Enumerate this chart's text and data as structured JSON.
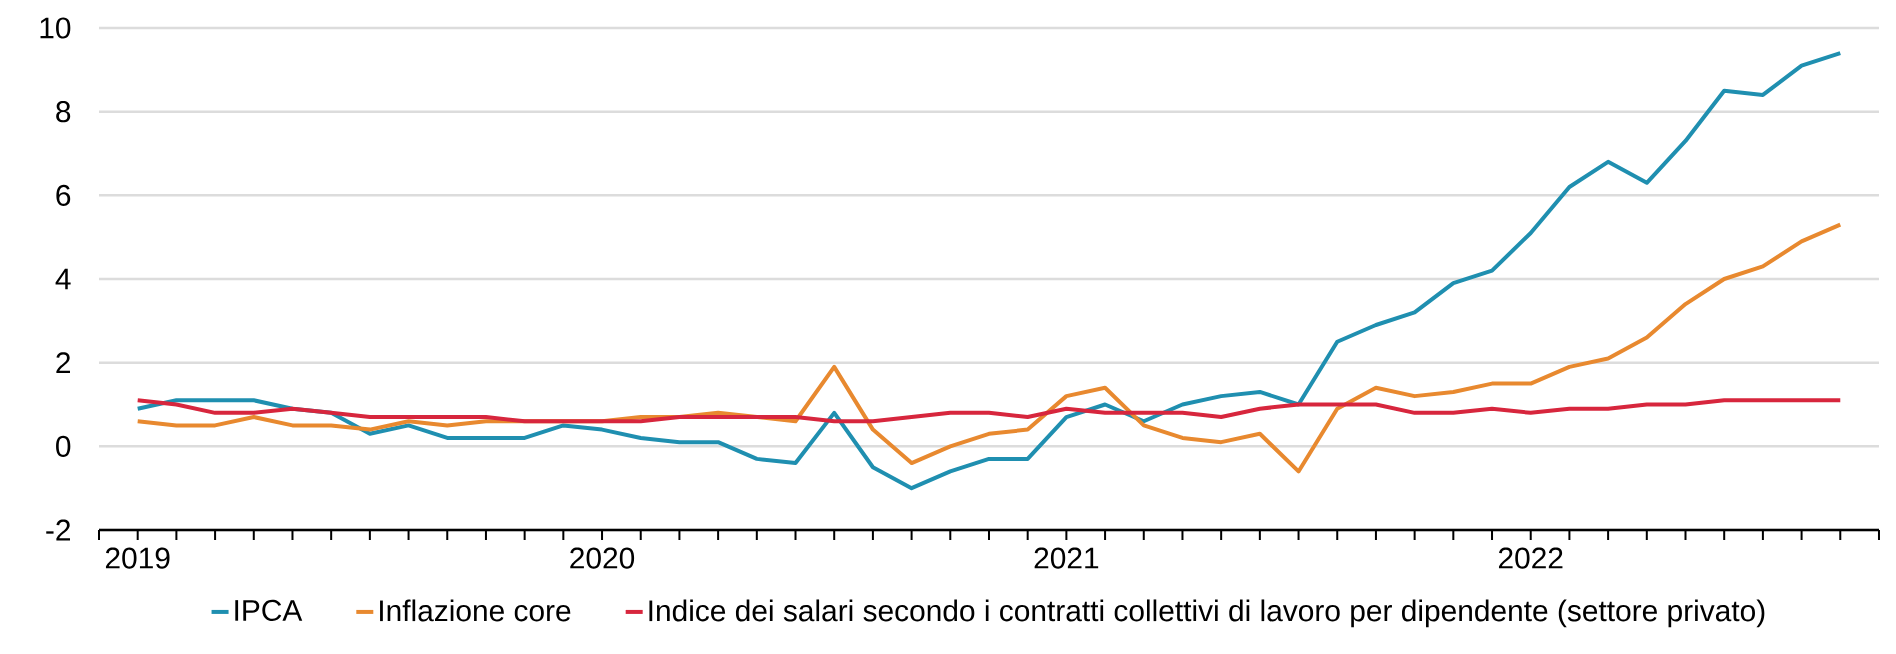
{
  "chart_data": {
    "type": "line",
    "x": [
      "2019-01",
      "2019-02",
      "2019-03",
      "2019-04",
      "2019-05",
      "2019-06",
      "2019-07",
      "2019-08",
      "2019-09",
      "2019-10",
      "2019-11",
      "2019-12",
      "2020-01",
      "2020-02",
      "2020-03",
      "2020-04",
      "2020-05",
      "2020-06",
      "2020-07",
      "2020-08",
      "2020-09",
      "2020-10",
      "2020-11",
      "2020-12",
      "2021-01",
      "2021-02",
      "2021-03",
      "2021-04",
      "2021-05",
      "2021-06",
      "2021-07",
      "2021-08",
      "2021-09",
      "2021-10",
      "2021-11",
      "2021-12",
      "2022-01",
      "2022-02",
      "2022-03",
      "2022-04",
      "2022-05",
      "2022-06",
      "2022-07",
      "2022-08",
      "2022-09"
    ],
    "series": [
      {
        "name": "IPCA",
        "color": "#1f8fb0",
        "values": [
          0.9,
          1.1,
          1.1,
          1.1,
          0.9,
          0.8,
          0.3,
          0.5,
          0.2,
          0.2,
          0.2,
          0.5,
          0.4,
          0.2,
          0.1,
          0.1,
          -0.3,
          -0.4,
          0.8,
          -0.5,
          -1.0,
          -0.6,
          -0.3,
          -0.3,
          0.7,
          1.0,
          0.6,
          1.0,
          1.2,
          1.3,
          1.0,
          2.5,
          2.9,
          3.2,
          3.9,
          4.2,
          5.1,
          6.2,
          6.8,
          6.3,
          7.3,
          8.5,
          8.4,
          9.1,
          9.4
        ]
      },
      {
        "name": "Inflazione core",
        "color": "#e8892f",
        "values": [
          0.6,
          0.5,
          0.5,
          0.7,
          0.5,
          0.5,
          0.4,
          0.6,
          0.5,
          0.6,
          0.6,
          0.6,
          0.6,
          0.7,
          0.7,
          0.8,
          0.7,
          0.6,
          1.9,
          0.4,
          -0.4,
          0.0,
          0.3,
          0.4,
          1.2,
          1.4,
          0.5,
          0.2,
          0.1,
          0.3,
          -0.6,
          0.9,
          1.4,
          1.2,
          1.3,
          1.5,
          1.5,
          1.9,
          2.1,
          2.6,
          3.4,
          4.0,
          4.3,
          4.9,
          5.3
        ]
      },
      {
        "name": "Indice dei salari secondo i contratti collettivi di lavoro per dipendente (settore privato)",
        "color": "#d7263d",
        "values": [
          1.1,
          1.0,
          0.8,
          0.8,
          0.9,
          0.8,
          0.7,
          0.7,
          0.7,
          0.7,
          0.6,
          0.6,
          0.6,
          0.6,
          0.7,
          0.7,
          0.7,
          0.7,
          0.6,
          0.6,
          0.7,
          0.8,
          0.8,
          0.7,
          0.9,
          0.8,
          0.8,
          0.8,
          0.7,
          0.9,
          1.0,
          1.0,
          1.0,
          0.8,
          0.8,
          0.9,
          0.8,
          0.9,
          0.9,
          1.0,
          1.0,
          1.1,
          1.1,
          1.1,
          1.1
        ]
      }
    ],
    "xlim": [
      "2018-12",
      "2022-10"
    ],
    "xticks": [
      {
        "value": "2018-12",
        "label": null
      },
      {
        "value": "2019-01",
        "label": "2019"
      },
      {
        "value": "2019-02",
        "label": null
      },
      {
        "value": "2019-03",
        "label": null
      },
      {
        "value": "2019-04",
        "label": null
      },
      {
        "value": "2019-05",
        "label": null
      },
      {
        "value": "2019-06",
        "label": null
      },
      {
        "value": "2019-07",
        "label": null
      },
      {
        "value": "2019-08",
        "label": null
      },
      {
        "value": "2019-09",
        "label": null
      },
      {
        "value": "2019-10",
        "label": null
      },
      {
        "value": "2019-11",
        "label": null
      },
      {
        "value": "2019-12",
        "label": null
      },
      {
        "value": "2020-01",
        "label": "2020"
      },
      {
        "value": "2020-02",
        "label": null
      },
      {
        "value": "2020-03",
        "label": null
      },
      {
        "value": "2020-04",
        "label": null
      },
      {
        "value": "2020-05",
        "label": null
      },
      {
        "value": "2020-06",
        "label": null
      },
      {
        "value": "2020-07",
        "label": null
      },
      {
        "value": "2020-08",
        "label": null
      },
      {
        "value": "2020-09",
        "label": null
      },
      {
        "value": "2020-10",
        "label": null
      },
      {
        "value": "2020-11",
        "label": null
      },
      {
        "value": "2020-12",
        "label": null
      },
      {
        "value": "2021-01",
        "label": "2021"
      },
      {
        "value": "2021-02",
        "label": null
      },
      {
        "value": "2021-03",
        "label": null
      },
      {
        "value": "2021-04",
        "label": null
      },
      {
        "value": "2021-05",
        "label": null
      },
      {
        "value": "2021-06",
        "label": null
      },
      {
        "value": "2021-07",
        "label": null
      },
      {
        "value": "2021-08",
        "label": null
      },
      {
        "value": "2021-09",
        "label": null
      },
      {
        "value": "2021-10",
        "label": null
      },
      {
        "value": "2021-11",
        "label": null
      },
      {
        "value": "2021-12",
        "label": null
      },
      {
        "value": "2022-01",
        "label": "2022"
      },
      {
        "value": "2022-02",
        "label": null
      },
      {
        "value": "2022-03",
        "label": null
      },
      {
        "value": "2022-04",
        "label": null
      },
      {
        "value": "2022-05",
        "label": null
      },
      {
        "value": "2022-06",
        "label": null
      },
      {
        "value": "2022-07",
        "label": null
      },
      {
        "value": "2022-08",
        "label": null
      },
      {
        "value": "2022-09",
        "label": null
      },
      {
        "value": "2022-10",
        "label": null
      }
    ],
    "ylim": [
      -2,
      10
    ],
    "yticks": [
      -2,
      0,
      2,
      4,
      6,
      8,
      10
    ],
    "grid": "y",
    "legend": "bottom",
    "marker": "none",
    "line_style": "solid"
  }
}
